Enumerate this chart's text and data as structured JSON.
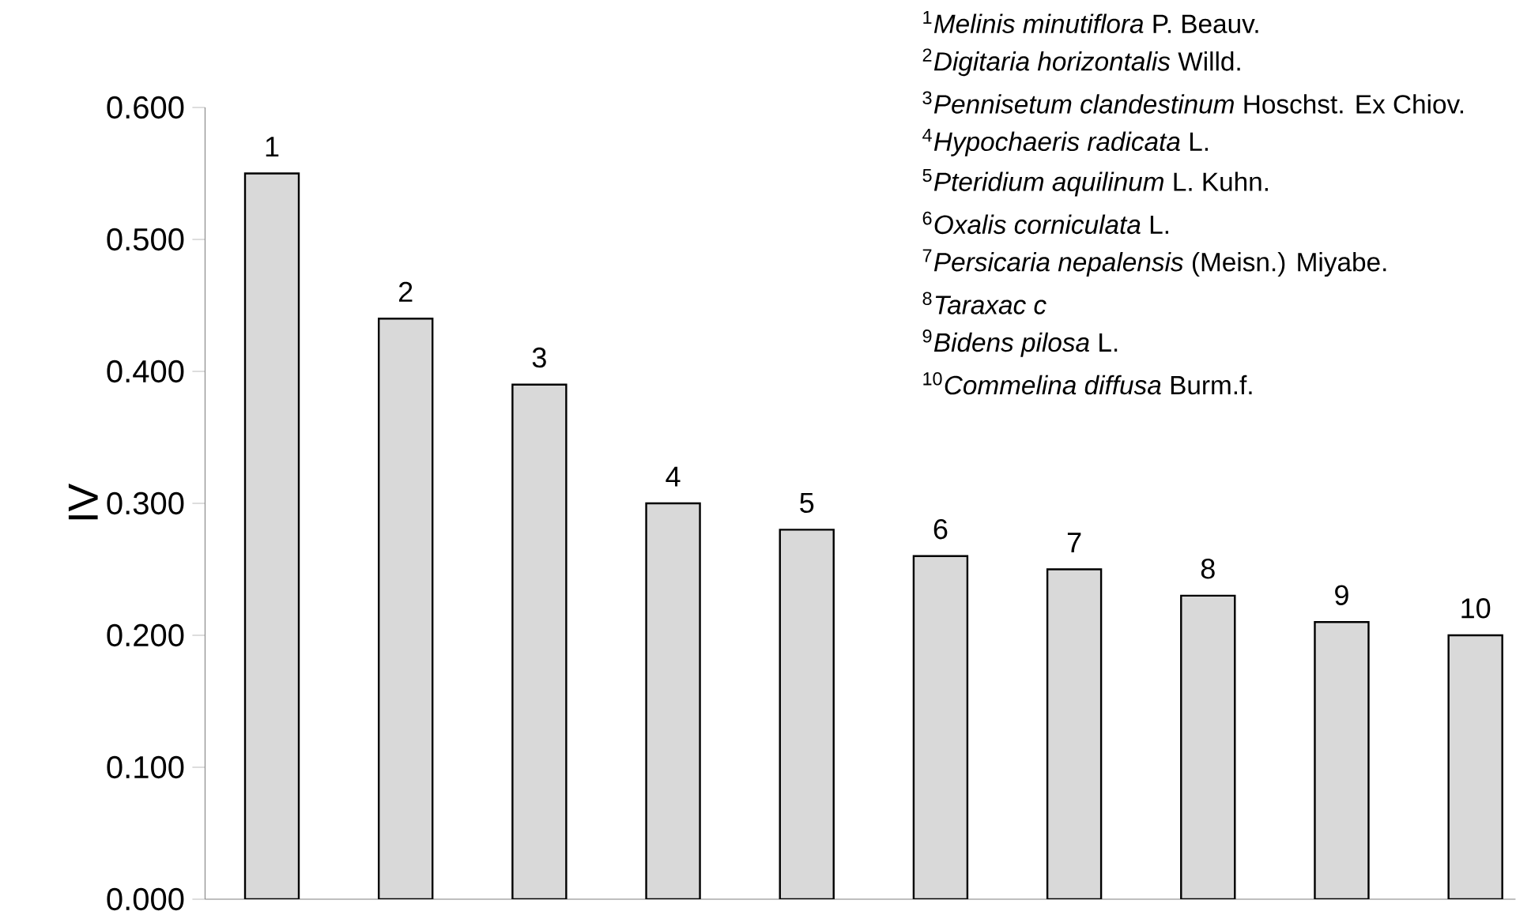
{
  "chart_data": {
    "type": "bar",
    "ylabel": "IV",
    "categories": [
      "1",
      "2",
      "3",
      "4",
      "5",
      "6",
      "7",
      "8",
      "9",
      "10"
    ],
    "values": [
      0.55,
      0.44,
      0.39,
      0.3,
      0.28,
      0.26,
      0.25,
      0.23,
      0.21,
      0.2
    ],
    "color": "#d9d9d9",
    "ylim": [
      0,
      0.6
    ],
    "yticks": [
      {
        "value": 0,
        "label": "0.000"
      },
      {
        "value": 0.1,
        "label": "0.100"
      },
      {
        "value": 0.2,
        "label": "0.200"
      },
      {
        "value": 0.3,
        "label": "0.300"
      },
      {
        "value": 0.4,
        "label": "0.400"
      },
      {
        "value": 0.5,
        "label": "0.500"
      },
      {
        "value": 0.6,
        "label": "0.600"
      }
    ],
    "grid": false,
    "annotations": [
      "$^{1}$*Melinis minutiflora* P. Beauv.",
      "$^{2}$*Digitaria horizontalis* Willd.",
      "$^{3}$*Pennisetum clandestinum* Hoschst. Ex Chiov.",
      "$^{4}$*Hypochaeris radicata* L.",
      "$^{5}$*Pteridium aquilinum* L. Kuhn.",
      "$^{6}$*Oxalis corniculata* L.",
      "$^{7}$*Persicaria nepalensis* (Meisn.) Miyabe.",
      "$^{8}$*Taraxac c*",
      "$^{9}$*Bidens pilosa* L.",
      "$^{10}$*Commelina diffusa* Burm.f."
    ]
  }
}
